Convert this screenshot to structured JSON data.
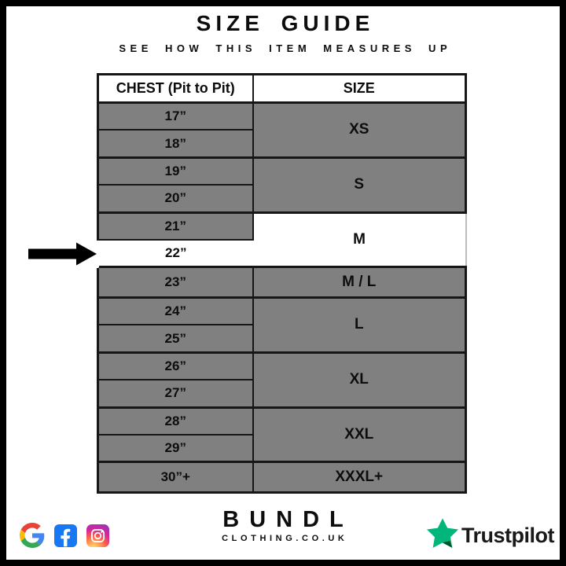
{
  "header": {
    "title": "SIZE GUIDE",
    "subtitle": "SEE HOW THIS ITEM MEASURES UP"
  },
  "table": {
    "columns": [
      "CHEST (Pit to Pit)",
      "SIZE"
    ],
    "groups": [
      {
        "size": "XS",
        "chest": [
          "17”",
          "18”"
        ]
      },
      {
        "size": "S",
        "chest": [
          "19”",
          "20”"
        ]
      },
      {
        "size": "M",
        "chest": [
          "21”",
          "22”"
        ]
      },
      {
        "size": "M / L",
        "chest": [
          "23”"
        ]
      },
      {
        "size": "L",
        "chest": [
          "24”",
          "25”"
        ]
      },
      {
        "size": "XL",
        "chest": [
          "26”",
          "27”"
        ]
      },
      {
        "size": "XXL",
        "chest": [
          "28”",
          "29”"
        ]
      },
      {
        "size": "XXXL+",
        "chest": [
          "30”+"
        ]
      }
    ],
    "highlighted_chest": "22”",
    "highlighted_size": "M"
  },
  "footer": {
    "brand": "BUNDL",
    "brand_domain": "CLOTHING.CO.UK",
    "trustpilot_label": "Trustpilot"
  },
  "icons": {
    "pointer": "black-right-arrow",
    "social": [
      "google",
      "facebook",
      "instagram"
    ],
    "trustpilot": "trustpilot-star"
  },
  "colors": {
    "cell_gray": "#808080",
    "border_black": "#161616",
    "highlight_white": "#ffffff",
    "trustpilot_green": "#00B67A",
    "trustpilot_shadow_green": "#005128",
    "facebook_blue": "#1877F2",
    "google_blue": "#4285F4",
    "google_red": "#EA4335",
    "google_yellow": "#FBBC05",
    "google_green": "#34A853"
  },
  "chart_data": {
    "type": "table",
    "title": "SIZE GUIDE",
    "subtitle": "SEE HOW THIS ITEM MEASURES UP",
    "columns": [
      "CHEST (Pit to Pit)",
      "SIZE"
    ],
    "rows": [
      [
        "17”",
        "XS"
      ],
      [
        "18”",
        "XS"
      ],
      [
        "19”",
        "S"
      ],
      [
        "20”",
        "S"
      ],
      [
        "21”",
        "M"
      ],
      [
        "22”",
        "M"
      ],
      [
        "23”",
        "M / L"
      ],
      [
        "24”",
        "L"
      ],
      [
        "25”",
        "L"
      ],
      [
        "26”",
        "XL"
      ],
      [
        "27”",
        "XL"
      ],
      [
        "28”",
        "XXL"
      ],
      [
        "29”",
        "XXL"
      ],
      [
        "30”+",
        "XXXL+"
      ]
    ],
    "highlighted_row": [
      "22”",
      "M"
    ],
    "annotations": [
      "black arrow at left points to the 22” / M row"
    ]
  }
}
